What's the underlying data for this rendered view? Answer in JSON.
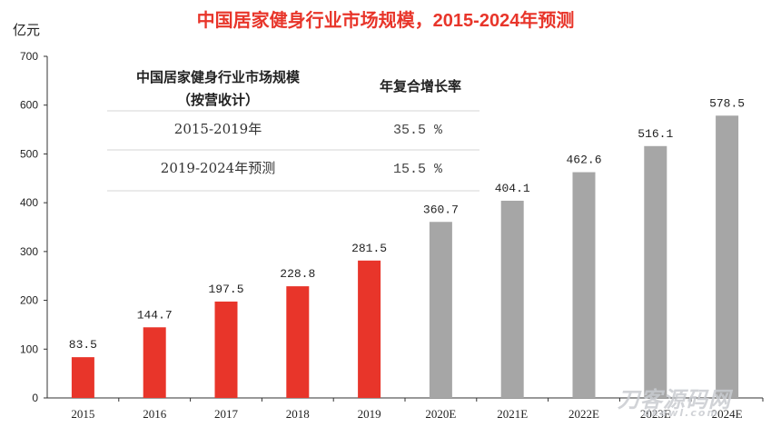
{
  "chart_data": {
    "type": "bar",
    "title": "中国居家健身行业市场规模，2015-2024年预测",
    "ylabel": "亿元",
    "ylim": [
      0,
      700
    ],
    "yticks": [
      0,
      100,
      200,
      300,
      400,
      500,
      600,
      700
    ],
    "grid": false,
    "legend": "none",
    "categories": [
      "2015",
      "2016",
      "2017",
      "2018",
      "2019",
      "2020E",
      "2021E",
      "2022E",
      "2023E",
      "2024E"
    ],
    "values": [
      83.5,
      144.7,
      197.5,
      228.8,
      281.5,
      360.7,
      404.1,
      462.6,
      516.1,
      578.5
    ],
    "value_labels": [
      "83.5",
      "144.7",
      "197.5",
      "228.8",
      "281.5",
      "360.7",
      "404.1",
      "462.6",
      "516.1",
      "578.5"
    ],
    "colors": [
      "#e8352a",
      "#e8352a",
      "#e8352a",
      "#e8352a",
      "#e8352a",
      "#a6a6a6",
      "#a6a6a6",
      "#a6a6a6",
      "#a6a6a6",
      "#a6a6a6"
    ],
    "inset_table": {
      "headers": [
        "中国居家健身行业市场规模",
        "（按营收计）",
        "年复合增长率"
      ],
      "rows": [
        {
          "period": "2015-2019年",
          "rate": "35.5 %"
        },
        {
          "period": "2019-2024年预测",
          "rate": "15.5 %"
        }
      ]
    }
  },
  "watermark": {
    "text": "刀客源码网",
    "sub": "dkewl.com"
  }
}
